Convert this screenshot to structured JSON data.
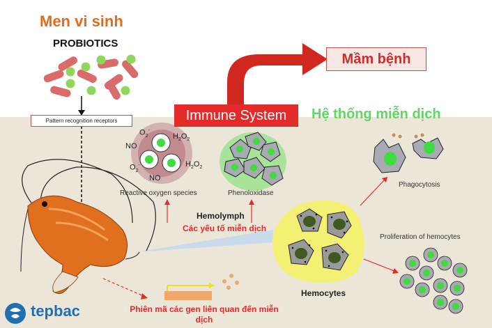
{
  "probiotics": {
    "title_vi": "Men vi sinh",
    "title_en": "PROBIOTICS",
    "receptor_label": "Pattern recognition receptors"
  },
  "pathogen": {
    "label_vi": "Mầm bệnh"
  },
  "immune_system": {
    "label_en": "Immune System",
    "label_vi": "Hệ thống miễn dịch"
  },
  "ros": {
    "label": "Reactive oxygen species",
    "chemicals": {
      "o2_minus_1": "O",
      "o2_minus_1_sub": "2",
      "o2_minus_1_sup": "-",
      "no_1": "NO",
      "h2o2_1_a": "H",
      "h2o2_1_b": "2",
      "h2o2_1_c": "O",
      "h2o2_1_d": "2",
      "o2_minus_2": "O",
      "o2_minus_2_sub": "2",
      "o2_minus_2_sup": "-",
      "no_2": "NO",
      "h2o2_2_a": "H",
      "h2o2_2_b": "2",
      "h2o2_2_c": "O",
      "h2o2_2_d": "2"
    }
  },
  "phenoloxidase": {
    "label": "Phenoloxidase"
  },
  "hemolymph": {
    "label": "Hemolymph",
    "humoral_vi": "Các yếu tố miễn dịch"
  },
  "phagocytosis": {
    "label": "Phagocytosis"
  },
  "proliferation": {
    "label": "Proliferation of hemocytes"
  },
  "hemocytes": {
    "label": "Hemocytes"
  },
  "gene_expression": {
    "label_vi": "Phiên mã các gen liên quan đến miễn dịch"
  },
  "logo": {
    "text": "tepbac"
  },
  "colors": {
    "orange_title": "#e36c1c",
    "red_accent": "#e32b2b",
    "green_label": "#5fd65f",
    "background_band": "#ece6d8",
    "hemocyte_yellow": "#f3f074"
  }
}
